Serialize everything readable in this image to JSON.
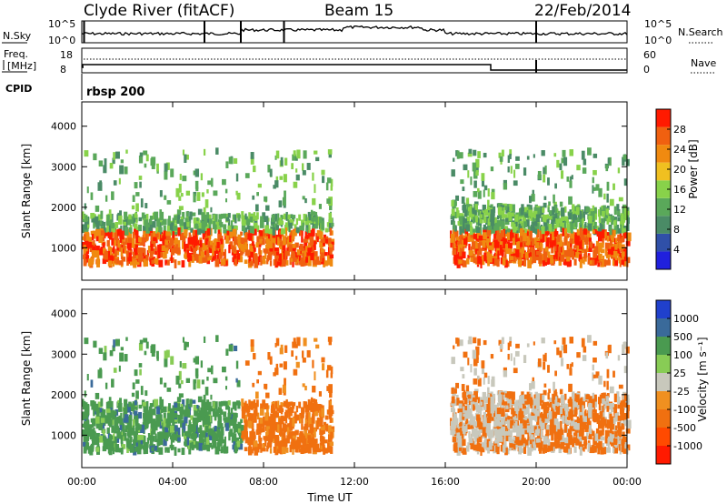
{
  "header": {
    "station": "Clyde River (fitACF)",
    "beam": "Beam 15",
    "date": "22/Feb/2014"
  },
  "top_panels": {
    "nsky_label": "N.Sky",
    "nsky_ticks": [
      "10^5",
      "10^0"
    ],
    "nsearch_label": "N.Search",
    "nsearch_ticks": [
      "10^5",
      "10^0"
    ],
    "freq_label_1": "Freq.",
    "freq_label_2": "[MHz]",
    "freq_ticks": [
      "18",
      "8"
    ],
    "nave_label": "Nave",
    "nave_ticks": [
      "60",
      "0"
    ],
    "cpid_label": "CPID",
    "cpid_value": "rbsp 200"
  },
  "colors": {
    "power_scale": [
      "#2020dd",
      "#3050a8",
      "#4a8b66",
      "#5aa85a",
      "#88d24a",
      "#f0c020",
      "#f08a10",
      "#f06010",
      "#ff1a00"
    ],
    "velocity_scale": [
      "#ff1a00",
      "#ff4a00",
      "#f07010",
      "#f09020",
      "#c8c8bc",
      "#88cc55",
      "#4a9a50",
      "#3a6a9a",
      "#2040cc"
    ]
  },
  "chart_data": [
    {
      "type": "heatmap",
      "name": "power",
      "ylabel": "Slant Range [km]",
      "y_ticks": [
        "1000",
        "2000",
        "3000",
        "4000"
      ],
      "ylim": [
        200,
        4600
      ],
      "colorbar_label": "Power [dB]",
      "colorbar_ticks": [
        "4",
        "8",
        "12",
        "16",
        "20",
        "24",
        "28"
      ],
      "x_range_hours": [
        0,
        24
      ],
      "scatter_regions": [
        {
          "t_start": 0.0,
          "t_end": 11.0,
          "range_low": 600,
          "range_high": 1800
        },
        {
          "t_start": 16.2,
          "t_end": 24.0,
          "range_low": 600,
          "range_high": 2000
        }
      ]
    },
    {
      "type": "heatmap",
      "name": "velocity",
      "ylabel": "Slant Range [km]",
      "y_ticks": [
        "1000",
        "2000",
        "3000",
        "4000"
      ],
      "ylim": [
        200,
        4600
      ],
      "colorbar_label": "Velocity [m s⁻¹]",
      "colorbar_ticks": [
        "1000",
        "500",
        "100",
        "25",
        "-25",
        "-100",
        "-500",
        "-1000"
      ],
      "x_range_hours": [
        0,
        24
      ],
      "x_ticks": [
        "00:00",
        "04:00",
        "08:00",
        "12:00",
        "16:00",
        "20:00",
        "00:00"
      ],
      "xlabel": "Time UT"
    }
  ]
}
